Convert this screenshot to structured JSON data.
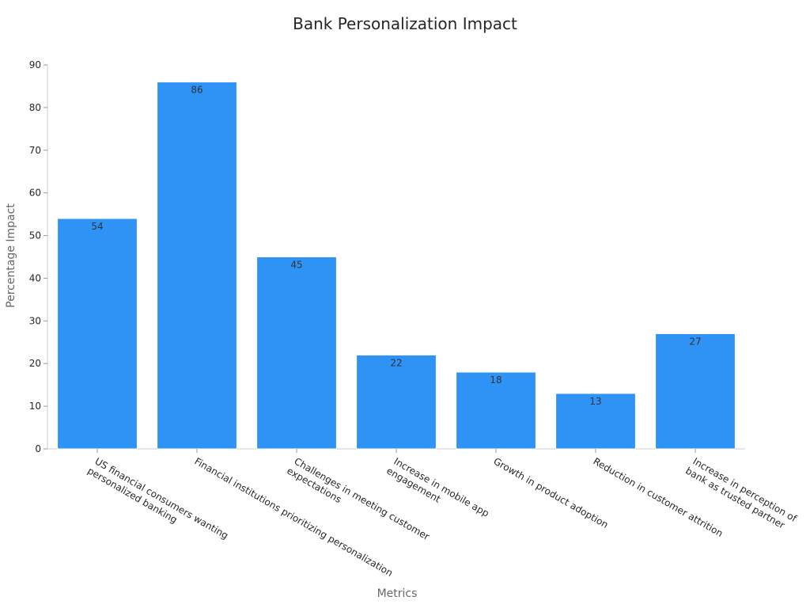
{
  "chart_data": {
    "type": "bar",
    "title": "Bank Personalization Impact",
    "xlabel": "Metrics",
    "ylabel": "Percentage Impact",
    "categories": [
      [
        "US financial consumers wanting",
        "personalized banking"
      ],
      [
        "Financial institutions prioritizing personalization"
      ],
      [
        "Challenges in meeting customer",
        "expectations"
      ],
      [
        "Increase in mobile app",
        "engagement"
      ],
      [
        "Growth in product adoption"
      ],
      [
        "Reduction in customer attrition"
      ],
      [
        "Increase in perception of",
        "bank as trusted partner"
      ]
    ],
    "values": [
      54,
      86,
      45,
      22,
      18,
      13,
      27
    ],
    "ylim": [
      0,
      90
    ],
    "yticks": [
      0,
      10,
      20,
      30,
      40,
      50,
      60,
      70,
      80,
      90
    ],
    "bar_color": "#2f93f6",
    "grid": false,
    "legend": "none"
  }
}
